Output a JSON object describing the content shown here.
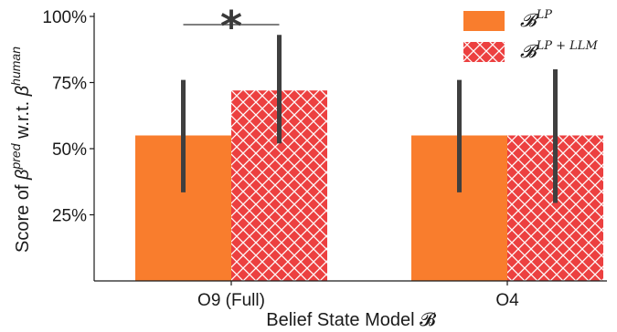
{
  "chart_data": {
    "type": "bar",
    "categories": [
      "O9 (Full)",
      "O4"
    ],
    "series": [
      {
        "name": "B^{LP}",
        "name_main": "𝓑",
        "name_sup": "LP",
        "color": "#f97d2d",
        "pattern": "solid",
        "values": [
          55,
          55
        ],
        "err_low": [
          33.5,
          33.5
        ],
        "err_high": [
          76,
          76
        ]
      },
      {
        "name": "B^{LP + LLM}",
        "name_main": "𝓑",
        "name_sup": "LP + LLM",
        "color": "#ec4040",
        "pattern": "crosshatch",
        "values": [
          72,
          55
        ],
        "err_low": [
          52,
          29.5
        ],
        "err_high": [
          93,
          80
        ]
      }
    ],
    "ylim": [
      0,
      100
    ],
    "yticks": [
      25,
      50,
      75,
      100
    ],
    "ytick_labels": [
      "25%",
      "50%",
      "75%",
      "100%"
    ],
    "ylabel": "Score of β^{pred} w.r.t. β^{human}",
    "ylabel_parts": {
      "prefix": "Score of ",
      "beta1": "β",
      "sup1": "pred",
      "middle": " w.r.t. ",
      "beta2": "β",
      "sup2": "human"
    },
    "xlabel": "Belief State Model 𝓑",
    "legend_position": "top-right",
    "grid": false,
    "significance": {
      "label": "*",
      "category_index": 0
    }
  }
}
